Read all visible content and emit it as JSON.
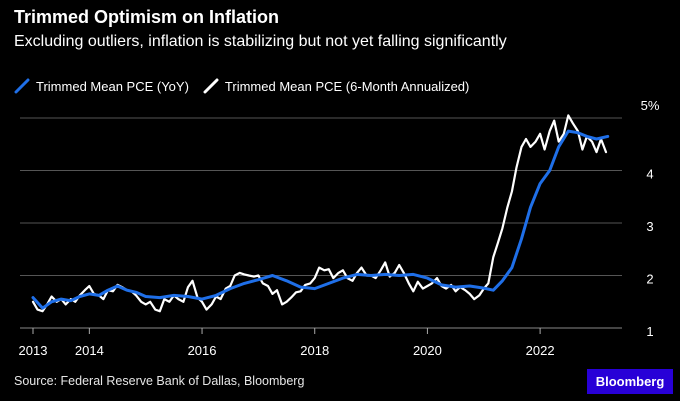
{
  "header": {
    "title": "Trimmed Optimism on Inflation",
    "subtitle": "Excluding outliers, inflation is stabilizing but not yet falling significantly"
  },
  "footer": {
    "source": "Source: Federal Reserve Bank of Dallas, Bloomberg",
    "brand": "Bloomberg"
  },
  "colors": {
    "background": "#000000",
    "yoy": "#1f6fe8",
    "six_month": "#ffffff",
    "grid": "#555555",
    "brand_bg": "#2800d7"
  },
  "chart_data": {
    "type": "line",
    "title": "Trimmed Optimism on Inflation",
    "subtitle": "Excluding outliers, inflation is stabilizing but not yet falling significantly",
    "xlabel": "",
    "ylabel": "",
    "xlim": [
      2013.0,
      2023.4
    ],
    "ylim": [
      1.0,
      5.0
    ],
    "x_ticks": [
      2013,
      2014,
      2016,
      2018,
      2020,
      2022
    ],
    "y_ticks": [
      1,
      2,
      3,
      4,
      5
    ],
    "y_tick_labels": [
      "1",
      "2",
      "3",
      "4",
      "5%"
    ],
    "grid": true,
    "legend": "top-left",
    "series": [
      {
        "name": "Trimmed Mean PCE (YoY)",
        "color": "#1f6fe8",
        "x": [
          2013.0,
          2013.17,
          2013.33,
          2013.5,
          2013.67,
          2013.83,
          2014.0,
          2014.17,
          2014.33,
          2014.5,
          2014.67,
          2014.83,
          2015.0,
          2015.25,
          2015.5,
          2015.75,
          2016.0,
          2016.25,
          2016.5,
          2016.75,
          2017.0,
          2017.25,
          2017.5,
          2017.75,
          2018.0,
          2018.25,
          2018.5,
          2018.75,
          2019.0,
          2019.25,
          2019.5,
          2019.75,
          2020.0,
          2020.25,
          2020.5,
          2020.75,
          2021.0,
          2021.17,
          2021.33,
          2021.5,
          2021.67,
          2021.83,
          2022.0,
          2022.17,
          2022.33,
          2022.5,
          2022.67,
          2022.83,
          2023.0,
          2023.2
        ],
        "values": [
          1.58,
          1.38,
          1.5,
          1.55,
          1.52,
          1.6,
          1.65,
          1.62,
          1.72,
          1.8,
          1.72,
          1.68,
          1.6,
          1.58,
          1.62,
          1.6,
          1.55,
          1.62,
          1.75,
          1.85,
          1.92,
          2.0,
          1.9,
          1.78,
          1.75,
          1.85,
          1.95,
          2.02,
          2.0,
          2.02,
          2.0,
          2.02,
          1.95,
          1.82,
          1.78,
          1.8,
          1.76,
          1.72,
          1.9,
          2.15,
          2.7,
          3.3,
          3.75,
          4.0,
          4.45,
          4.75,
          4.72,
          4.65,
          4.6,
          4.65
        ]
      },
      {
        "name": "Trimmed Mean PCE (6-Month Annualized)",
        "color": "#ffffff",
        "x": [
          2013.0,
          2013.08,
          2013.17,
          2013.25,
          2013.33,
          2013.42,
          2013.5,
          2013.58,
          2013.67,
          2013.75,
          2013.83,
          2013.92,
          2014.0,
          2014.08,
          2014.17,
          2014.25,
          2014.33,
          2014.42,
          2014.5,
          2014.58,
          2014.67,
          2014.75,
          2014.83,
          2014.92,
          2015.0,
          2015.08,
          2015.17,
          2015.25,
          2015.33,
          2015.42,
          2015.5,
          2015.58,
          2015.67,
          2015.75,
          2015.83,
          2015.92,
          2016.0,
          2016.08,
          2016.17,
          2016.25,
          2016.33,
          2016.42,
          2016.5,
          2016.58,
          2016.67,
          2016.75,
          2016.83,
          2016.92,
          2017.0,
          2017.08,
          2017.17,
          2017.25,
          2017.33,
          2017.42,
          2017.5,
          2017.58,
          2017.67,
          2017.75,
          2017.83,
          2017.92,
          2018.0,
          2018.08,
          2018.17,
          2018.25,
          2018.33,
          2018.42,
          2018.5,
          2018.58,
          2018.67,
          2018.75,
          2018.83,
          2018.92,
          2019.0,
          2019.08,
          2019.17,
          2019.25,
          2019.33,
          2019.42,
          2019.5,
          2019.58,
          2019.67,
          2019.75,
          2019.83,
          2019.92,
          2020.0,
          2020.08,
          2020.17,
          2020.25,
          2020.33,
          2020.42,
          2020.5,
          2020.58,
          2020.67,
          2020.75,
          2020.83,
          2020.92,
          2021.0,
          2021.08,
          2021.17,
          2021.25,
          2021.33,
          2021.42,
          2021.5,
          2021.58,
          2021.67,
          2021.75,
          2021.83,
          2021.92,
          2022.0,
          2022.08,
          2022.17,
          2022.25,
          2022.33,
          2022.42,
          2022.5,
          2022.58,
          2022.67,
          2022.75,
          2022.83,
          2022.92,
          2023.0,
          2023.08,
          2023.17
        ],
        "values": [
          1.5,
          1.35,
          1.32,
          1.45,
          1.6,
          1.5,
          1.55,
          1.45,
          1.55,
          1.5,
          1.62,
          1.72,
          1.8,
          1.65,
          1.62,
          1.55,
          1.72,
          1.7,
          1.82,
          1.78,
          1.72,
          1.7,
          1.62,
          1.5,
          1.45,
          1.5,
          1.35,
          1.32,
          1.55,
          1.5,
          1.62,
          1.55,
          1.5,
          1.78,
          1.9,
          1.58,
          1.5,
          1.35,
          1.45,
          1.6,
          1.55,
          1.75,
          1.8,
          2.0,
          2.05,
          2.02,
          2.0,
          1.98,
          2.0,
          1.85,
          1.8,
          1.65,
          1.72,
          1.45,
          1.5,
          1.58,
          1.68,
          1.7,
          1.82,
          1.85,
          1.95,
          2.15,
          2.1,
          2.12,
          1.95,
          2.05,
          2.1,
          1.95,
          1.9,
          2.05,
          2.15,
          2.0,
          2.0,
          1.95,
          2.1,
          2.25,
          1.98,
          2.05,
          2.2,
          2.05,
          1.85,
          1.7,
          1.88,
          1.75,
          1.8,
          1.85,
          1.95,
          1.8,
          1.75,
          1.82,
          1.7,
          1.78,
          1.72,
          1.65,
          1.55,
          1.62,
          1.75,
          1.85,
          2.35,
          2.62,
          2.9,
          3.3,
          3.6,
          4.05,
          4.45,
          4.6,
          4.45,
          4.55,
          4.7,
          4.4,
          4.75,
          4.95,
          4.55,
          4.7,
          5.05,
          4.9,
          4.75,
          4.4,
          4.65,
          4.55,
          4.35,
          4.6,
          4.35
        ]
      }
    ]
  }
}
